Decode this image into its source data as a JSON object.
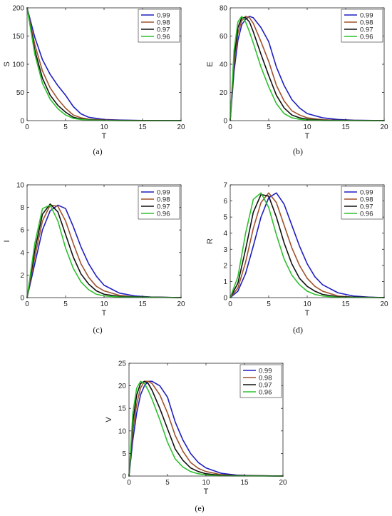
{
  "chart_data": [
    {
      "type": "line",
      "caption": "(a)",
      "xlabel": "T",
      "ylabel": "S",
      "xlim": [
        0,
        20
      ],
      "ylim": [
        0,
        200
      ],
      "xticks": [
        0,
        5,
        10,
        15,
        20
      ],
      "yticks": [
        0,
        50,
        100,
        150,
        200
      ],
      "legend_position": "top-right",
      "grid": false,
      "series": [
        {
          "name": "0.99",
          "color": "#1f1fbf",
          "x": [
            0,
            1,
            2,
            3,
            4,
            5,
            6,
            7,
            8,
            10,
            12,
            15,
            20
          ],
          "y": [
            200,
            148,
            108,
            82,
            62,
            45,
            25,
            12,
            6,
            2,
            1,
            0.3,
            0
          ]
        },
        {
          "name": "0.98",
          "color": "#a0522d",
          "x": [
            0,
            1,
            2,
            3,
            4,
            5,
            6,
            7,
            8,
            10,
            12,
            15,
            20
          ],
          "y": [
            200,
            135,
            88,
            58,
            38,
            22,
            10,
            5,
            2.5,
            1,
            0.4,
            0.1,
            0
          ]
        },
        {
          "name": "0.97",
          "color": "#111111",
          "x": [
            0,
            1,
            2,
            3,
            4,
            5,
            6,
            7,
            8,
            10,
            12,
            15,
            20
          ],
          "y": [
            200,
            125,
            75,
            45,
            27,
            15,
            6,
            3,
            1.5,
            0.5,
            0.2,
            0,
            0
          ]
        },
        {
          "name": "0.96",
          "color": "#2ec02e",
          "x": [
            0,
            1,
            2,
            3,
            4,
            5,
            6,
            7,
            8,
            10,
            12,
            15,
            20
          ],
          "y": [
            200,
            118,
            66,
            38,
            21,
            10,
            4,
            2,
            1,
            0.3,
            0.1,
            0,
            0
          ]
        }
      ]
    },
    {
      "type": "line",
      "caption": "(b)",
      "xlabel": "T",
      "ylabel": "E",
      "xlim": [
        0,
        20
      ],
      "ylim": [
        0,
        80
      ],
      "xticks": [
        0,
        5,
        10,
        15,
        20
      ],
      "yticks": [
        0,
        20,
        40,
        60,
        80
      ],
      "legend_position": "top-right",
      "grid": false,
      "series": [
        {
          "name": "0.99",
          "color": "#1f1fbf",
          "x": [
            0,
            0.5,
            1,
            1.5,
            2,
            2.5,
            3,
            4,
            5,
            6,
            7,
            8,
            9,
            10,
            12,
            14,
            16,
            20
          ],
          "y": [
            0,
            35,
            57,
            68,
            72,
            74,
            73,
            66,
            56,
            38,
            25,
            15,
            9,
            5,
            2,
            0.8,
            0.3,
            0
          ]
        },
        {
          "name": "0.98",
          "color": "#a0522d",
          "x": [
            0,
            0.5,
            1,
            1.5,
            2,
            2.5,
            3,
            4,
            5,
            6,
            7,
            8,
            9,
            10,
            12,
            14,
            20
          ],
          "y": [
            0,
            40,
            62,
            71,
            74,
            73,
            69,
            56,
            42,
            25,
            14,
            7,
            4,
            2,
            0.6,
            0.2,
            0
          ]
        },
        {
          "name": "0.97",
          "color": "#111111",
          "x": [
            0,
            0.5,
            1,
            1.5,
            2,
            2.5,
            3,
            4,
            5,
            6,
            7,
            8,
            9,
            10,
            12,
            20
          ],
          "y": [
            0,
            45,
            66,
            73,
            73,
            70,
            63,
            47,
            32,
            18,
            9,
            4,
            2,
            1,
            0.3,
            0
          ]
        },
        {
          "name": "0.96",
          "color": "#2ec02e",
          "x": [
            0,
            0.5,
            1,
            1.5,
            2,
            2.5,
            3,
            4,
            5,
            6,
            7,
            8,
            9,
            10,
            12,
            20
          ],
          "y": [
            0,
            50,
            70,
            74,
            70,
            63,
            55,
            38,
            24,
            12,
            5,
            2,
            1,
            0.4,
            0.1,
            0
          ]
        }
      ]
    },
    {
      "type": "line",
      "caption": "(c)",
      "xlabel": "T",
      "ylabel": "I",
      "xlim": [
        0,
        20
      ],
      "ylim": [
        0,
        10
      ],
      "xticks": [
        0,
        5,
        10,
        15,
        20
      ],
      "yticks": [
        0,
        2,
        4,
        6,
        8,
        10
      ],
      "legend_position": "top-right",
      "grid": false,
      "series": [
        {
          "name": "0.99",
          "color": "#1f1fbf",
          "x": [
            0,
            1,
            2,
            3,
            4,
            5,
            6,
            7,
            8,
            9,
            10,
            12,
            14,
            16,
            20
          ],
          "y": [
            0,
            3,
            6,
            7.7,
            8.2,
            7.9,
            6.3,
            4.5,
            3,
            1.9,
            1.1,
            0.4,
            0.15,
            0.05,
            0
          ]
        },
        {
          "name": "0.98",
          "color": "#a0522d",
          "x": [
            0,
            1,
            2,
            3,
            4,
            5,
            6,
            7,
            8,
            9,
            10,
            12,
            14,
            20
          ],
          "y": [
            0,
            3.6,
            6.8,
            8.2,
            8.1,
            6.8,
            4.8,
            3,
            1.8,
            1,
            0.6,
            0.2,
            0.05,
            0
          ]
        },
        {
          "name": "0.97",
          "color": "#111111",
          "x": [
            0,
            1,
            2,
            3,
            4,
            5,
            6,
            7,
            8,
            9,
            10,
            12,
            20
          ],
          "y": [
            0,
            4.2,
            7.4,
            8.3,
            7.6,
            5.6,
            3.6,
            2.1,
            1.2,
            0.6,
            0.3,
            0.1,
            0
          ]
        },
        {
          "name": "0.96",
          "color": "#2ec02e",
          "x": [
            0,
            1,
            2,
            3,
            4,
            5,
            6,
            7,
            8,
            9,
            10,
            12,
            20
          ],
          "y": [
            0,
            4.8,
            7.9,
            8.2,
            6.8,
            4.4,
            2.6,
            1.4,
            0.7,
            0.3,
            0.15,
            0.05,
            0
          ]
        }
      ]
    },
    {
      "type": "line",
      "caption": "(d)",
      "xlabel": "T",
      "ylabel": "R",
      "xlim": [
        0,
        20
      ],
      "ylim": [
        0,
        7
      ],
      "xticks": [
        0,
        5,
        10,
        15,
        20
      ],
      "yticks": [
        0,
        1,
        2,
        3,
        4,
        5,
        6,
        7
      ],
      "legend_position": "top-right",
      "grid": false,
      "series": [
        {
          "name": "0.99",
          "color": "#1f1fbf",
          "x": [
            0,
            1,
            2,
            3,
            4,
            5,
            6,
            7,
            8,
            9,
            10,
            11,
            12,
            14,
            16,
            18,
            20
          ],
          "y": [
            0,
            0.4,
            1.5,
            3.2,
            5,
            6.2,
            6.5,
            5.8,
            4.5,
            3.2,
            2.1,
            1.3,
            0.8,
            0.3,
            0.1,
            0.03,
            0
          ]
        },
        {
          "name": "0.98",
          "color": "#a0522d",
          "x": [
            0,
            1,
            2,
            3,
            4,
            5,
            6,
            7,
            8,
            9,
            10,
            11,
            12,
            14,
            16,
            20
          ],
          "y": [
            0,
            0.6,
            2.2,
            4.3,
            5.9,
            6.5,
            5.9,
            4.5,
            3.1,
            2,
            1.2,
            0.7,
            0.4,
            0.1,
            0.03,
            0
          ]
        },
        {
          "name": "0.97",
          "color": "#111111",
          "x": [
            0,
            1,
            2,
            3,
            4,
            5,
            6,
            7,
            8,
            9,
            10,
            11,
            12,
            14,
            20
          ],
          "y": [
            0,
            0.9,
            3,
            5.3,
            6.4,
            6.3,
            5,
            3.4,
            2.1,
            1.2,
            0.7,
            0.4,
            0.2,
            0.05,
            0
          ]
        },
        {
          "name": "0.96",
          "color": "#2ec02e",
          "x": [
            0,
            1,
            2,
            3,
            4,
            5,
            6,
            7,
            8,
            9,
            10,
            11,
            12,
            14,
            20
          ],
          "y": [
            0,
            1.3,
            4,
            6.1,
            6.5,
            5.6,
            3.9,
            2.4,
            1.4,
            0.8,
            0.4,
            0.2,
            0.1,
            0.02,
            0
          ]
        }
      ]
    },
    {
      "type": "line",
      "caption": "(e)",
      "xlabel": "T",
      "ylabel": "V",
      "xlim": [
        0,
        20
      ],
      "ylim": [
        0,
        25
      ],
      "xticks": [
        0,
        5,
        10,
        15,
        20
      ],
      "yticks": [
        0,
        5,
        10,
        15,
        20,
        25
      ],
      "legend_position": "top-right",
      "grid": false,
      "series": [
        {
          "name": "0.99",
          "color": "#1f1fbf",
          "x": [
            0,
            0.5,
            1,
            1.5,
            2,
            2.5,
            3,
            4,
            5,
            6,
            7,
            8,
            9,
            10,
            12,
            14,
            16,
            20
          ],
          "y": [
            0,
            8,
            14,
            18,
            20,
            21,
            21,
            20,
            17.5,
            12,
            8,
            5,
            3,
            1.8,
            0.6,
            0.2,
            0.08,
            0
          ]
        },
        {
          "name": "0.98",
          "color": "#a0522d",
          "x": [
            0,
            0.5,
            1,
            1.5,
            2,
            2.5,
            3,
            4,
            5,
            6,
            7,
            8,
            9,
            10,
            12,
            14,
            20
          ],
          "y": [
            0,
            10,
            16,
            19.5,
            21,
            21,
            20.5,
            18,
            14,
            9,
            5.5,
            3,
            1.7,
            1,
            0.3,
            0.1,
            0
          ]
        },
        {
          "name": "0.97",
          "color": "#111111",
          "x": [
            0,
            0.5,
            1,
            1.5,
            2,
            2.5,
            3,
            4,
            5,
            6,
            7,
            8,
            9,
            10,
            12,
            20
          ],
          "y": [
            0,
            12,
            18,
            20.5,
            21,
            20.5,
            19,
            15,
            10.5,
            6,
            3.5,
            1.8,
            1,
            0.5,
            0.15,
            0
          ]
        },
        {
          "name": "0.96",
          "color": "#2ec02e",
          "x": [
            0,
            0.5,
            1,
            1.5,
            2,
            2.5,
            3,
            4,
            5,
            6,
            7,
            8,
            9,
            10,
            12,
            20
          ],
          "y": [
            0,
            14,
            19.5,
            21,
            20.5,
            19,
            17,
            12.5,
            7.5,
            3.8,
            2,
            1,
            0.5,
            0.25,
            0.05,
            0
          ]
        }
      ]
    }
  ]
}
